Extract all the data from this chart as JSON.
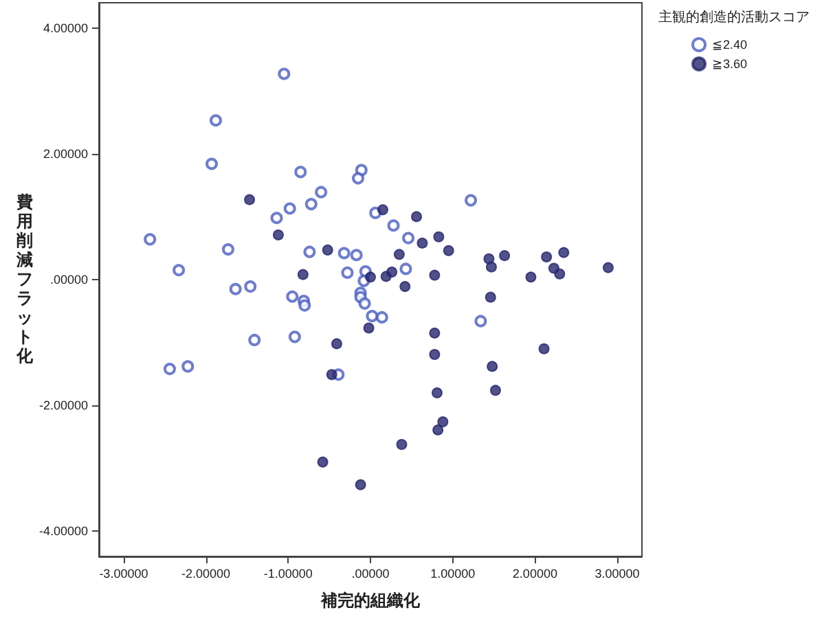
{
  "chart_data": {
    "type": "scatter",
    "xlabel": "補完的組織化",
    "ylabel": "費用削減フラット化",
    "legend_title": "主観的創造的活動スコア",
    "legend": "top right",
    "marker": "circle",
    "grid": false,
    "xlim": [
      -3.3,
      3.3
    ],
    "ylim": [
      -4.4,
      4.4
    ],
    "xticks": [
      {
        "value": -3,
        "label": "-3.00000"
      },
      {
        "value": -2,
        "label": "-2.00000"
      },
      {
        "value": -1,
        "label": "-1.00000"
      },
      {
        "value": 0,
        "label": ".00000"
      },
      {
        "value": 1,
        "label": "1.00000"
      },
      {
        "value": 2,
        "label": "2.00000"
      },
      {
        "value": 3,
        "label": "3.00000"
      }
    ],
    "yticks": [
      {
        "value": -4,
        "label": "-4.00000"
      },
      {
        "value": -2,
        "label": "-2.00000"
      },
      {
        "value": 0,
        "label": ".00000"
      },
      {
        "value": 2,
        "label": "2.00000"
      },
      {
        "value": 4,
        "label": "4.00000"
      }
    ],
    "series": [
      {
        "name": "≦2.40",
        "color": "#4a5cc0",
        "x": [
          -1.05,
          -1.88,
          -1.93,
          -0.85,
          -0.11,
          -0.15,
          -0.6,
          -0.72,
          -0.98,
          -1.14,
          0.06,
          -2.68,
          -1.73,
          -0.74,
          -0.32,
          -0.17,
          -2.33,
          -0.28,
          -0.06,
          -0.08,
          1.22,
          0.28,
          0.46,
          0.43,
          -1.64,
          -1.46,
          -0.95,
          -0.81,
          -0.8,
          -1.41,
          -0.92,
          -2.44,
          -2.22,
          -0.12,
          -0.12,
          -0.07,
          0.02,
          0.14,
          -0.39,
          1.34
        ],
        "values": [
          3.27,
          2.53,
          1.84,
          1.71,
          1.74,
          1.61,
          1.39,
          1.2,
          1.13,
          0.98,
          1.06,
          0.64,
          0.48,
          0.44,
          0.42,
          0.39,
          0.15,
          0.11,
          0.13,
          -0.02,
          1.26,
          0.86,
          0.66,
          0.17,
          -0.15,
          -0.11,
          -0.27,
          -0.34,
          -0.41,
          -0.96,
          -0.91,
          -1.42,
          -1.38,
          -0.21,
          -0.28,
          -0.38,
          -0.58,
          -0.6,
          -1.51,
          -0.66
        ]
      },
      {
        "name": "≧3.60",
        "color": "#25266e",
        "x": [
          -1.47,
          -1.12,
          -0.52,
          -0.82,
          0.0,
          0.15,
          0.56,
          0.83,
          0.63,
          0.95,
          0.35,
          1.44,
          1.63,
          1.47,
          2.14,
          2.35,
          2.23,
          2.3,
          2.89,
          1.95,
          0.78,
          0.19,
          0.26,
          0.42,
          -0.02,
          -0.41,
          -0.47,
          -0.58,
          -0.12,
          1.46,
          0.78,
          0.78,
          2.11,
          1.48,
          1.52,
          0.81,
          0.88,
          0.82,
          0.38
        ],
        "values": [
          1.27,
          0.71,
          0.47,
          0.08,
          0.04,
          1.11,
          1.0,
          0.68,
          0.58,
          0.46,
          0.4,
          0.33,
          0.38,
          0.2,
          0.36,
          0.43,
          0.18,
          0.09,
          0.19,
          0.04,
          0.07,
          0.05,
          0.12,
          -0.11,
          -0.77,
          -1.02,
          -1.51,
          -2.9,
          -3.26,
          -0.28,
          -0.85,
          -1.19,
          -1.1,
          -1.38,
          -1.76,
          -1.8,
          -2.26,
          -2.39,
          -2.62
        ]
      }
    ]
  }
}
